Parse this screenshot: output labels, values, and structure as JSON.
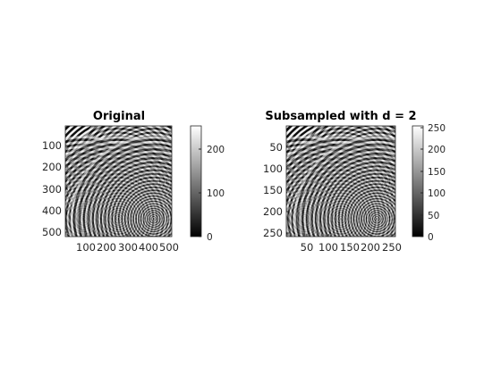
{
  "window": {
    "background": "#ffffff"
  },
  "panels": [
    {
      "title": "Original",
      "xticks": [
        "100",
        "200",
        "300",
        "400",
        "500"
      ],
      "yticks": [
        "100",
        "200",
        "300",
        "400",
        "500"
      ],
      "colorbar": {
        "ticks": [
          "200",
          "100",
          "0"
        ],
        "colormap": "gray",
        "range": [
          0,
          255
        ]
      },
      "content": {
        "image_size": [
          512,
          512
        ],
        "pattern": "grayscale concentric ring interference pattern, 3x3 grid of ring centers"
      }
    },
    {
      "title": "Subsampled with d = 2",
      "xticks": [
        "50",
        "100",
        "150",
        "200",
        "250"
      ],
      "yticks": [
        "50",
        "100",
        "150",
        "200",
        "250"
      ],
      "colorbar": {
        "ticks": [
          "250",
          "200",
          "150",
          "100",
          "50",
          "0"
        ],
        "colormap": "gray",
        "range": [
          0,
          255
        ]
      },
      "content": {
        "image_size": [
          256,
          256
        ],
        "pattern": "grayscale concentric ring interference pattern, 3x3 grid of ring centers"
      }
    }
  ]
}
